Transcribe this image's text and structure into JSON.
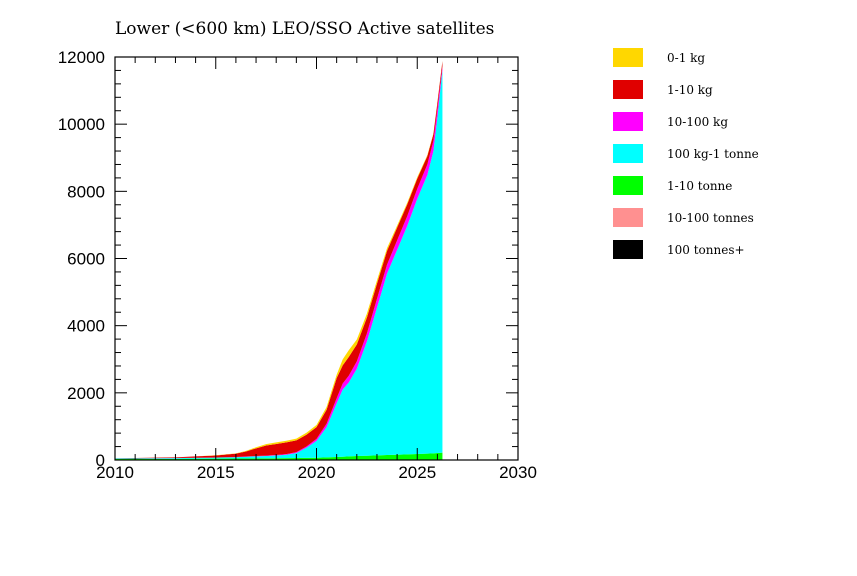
{
  "chart_data": {
    "type": "area",
    "stacked": true,
    "title": "Lower (<600 km) LEO/SSO Active satellites",
    "xlabel": "",
    "ylabel": "",
    "xlim": [
      2010,
      2030
    ],
    "ylim": [
      0,
      12000
    ],
    "xticks": [
      2010,
      2015,
      2020,
      2025,
      2030
    ],
    "yticks": [
      0,
      2000,
      4000,
      6000,
      8000,
      10000,
      12000
    ],
    "grid": false,
    "legend_position": "right",
    "x": [
      2010.0,
      2011.0,
      2012.0,
      2013.0,
      2014.0,
      2015.0,
      2016.0,
      2016.5,
      2017.0,
      2017.5,
      2018.0,
      2018.5,
      2019.0,
      2019.5,
      2020.0,
      2020.5,
      2021.0,
      2021.3,
      2021.6,
      2022.0,
      2022.5,
      2023.0,
      2023.5,
      2024.0,
      2024.5,
      2025.0,
      2025.5,
      2025.8,
      2026.0,
      2026.25
    ],
    "series": [
      {
        "name": "100 tonnes+",
        "color": "#000000",
        "values": [
          5,
          5,
          5,
          5,
          5,
          5,
          5,
          5,
          5,
          5,
          5,
          5,
          5,
          5,
          5,
          5,
          5,
          5,
          5,
          5,
          5,
          5,
          5,
          5,
          5,
          5,
          5,
          5,
          5,
          5
        ]
      },
      {
        "name": "10-100 tonnes",
        "color": "#ff9090",
        "values": [
          3,
          3,
          3,
          3,
          3,
          3,
          3,
          3,
          3,
          3,
          3,
          3,
          3,
          3,
          3,
          3,
          3,
          3,
          3,
          3,
          3,
          3,
          3,
          3,
          3,
          3,
          3,
          3,
          3,
          3
        ]
      },
      {
        "name": "1-10 tonne",
        "color": "#00ff00",
        "values": [
          20,
          22,
          25,
          27,
          30,
          32,
          35,
          37,
          40,
          42,
          45,
          47,
          50,
          55,
          60,
          70,
          80,
          90,
          100,
          110,
          120,
          130,
          140,
          150,
          160,
          170,
          180,
          190,
          200,
          210
        ]
      },
      {
        "name": "100 kg-1 tonne",
        "color": "#00ffff",
        "values": [
          15,
          18,
          20,
          22,
          25,
          30,
          40,
          50,
          60,
          70,
          80,
          100,
          150,
          300,
          500,
          900,
          1600,
          2000,
          2200,
          2600,
          3400,
          4400,
          5400,
          6100,
          6800,
          7600,
          8300,
          9000,
          10000,
          11400
        ]
      },
      {
        "name": "10-100 kg",
        "color": "#ff00ff",
        "values": [
          2,
          2,
          3,
          3,
          4,
          5,
          5,
          8,
          10,
          12,
          15,
          20,
          25,
          40,
          60,
          100,
          150,
          180,
          200,
          220,
          240,
          260,
          270,
          280,
          290,
          300,
          310,
          300,
          250,
          100
        ]
      },
      {
        "name": "1-10 kg",
        "color": "#e00000",
        "values": [
          5,
          10,
          15,
          20,
          40,
          60,
          100,
          150,
          230,
          300,
          330,
          350,
          350,
          350,
          350,
          420,
          600,
          540,
          560,
          500,
          470,
          450,
          410,
          380,
          350,
          300,
          250,
          200,
          180,
          160
        ]
      },
      {
        "name": "0-1 kg",
        "color": "#ffd700",
        "values": [
          0,
          0,
          0,
          0,
          2,
          5,
          10,
          20,
          30,
          40,
          45,
          50,
          55,
          60,
          65,
          80,
          100,
          180,
          200,
          150,
          120,
          100,
          80,
          60,
          50,
          40,
          30,
          20,
          15,
          10
        ]
      }
    ],
    "legend_order": [
      "0-1 kg",
      "1-10 kg",
      "10-100 kg",
      "100 kg-1 tonne",
      "1-10 tonne",
      "10-100 tonnes",
      "100 tonnes+"
    ]
  }
}
